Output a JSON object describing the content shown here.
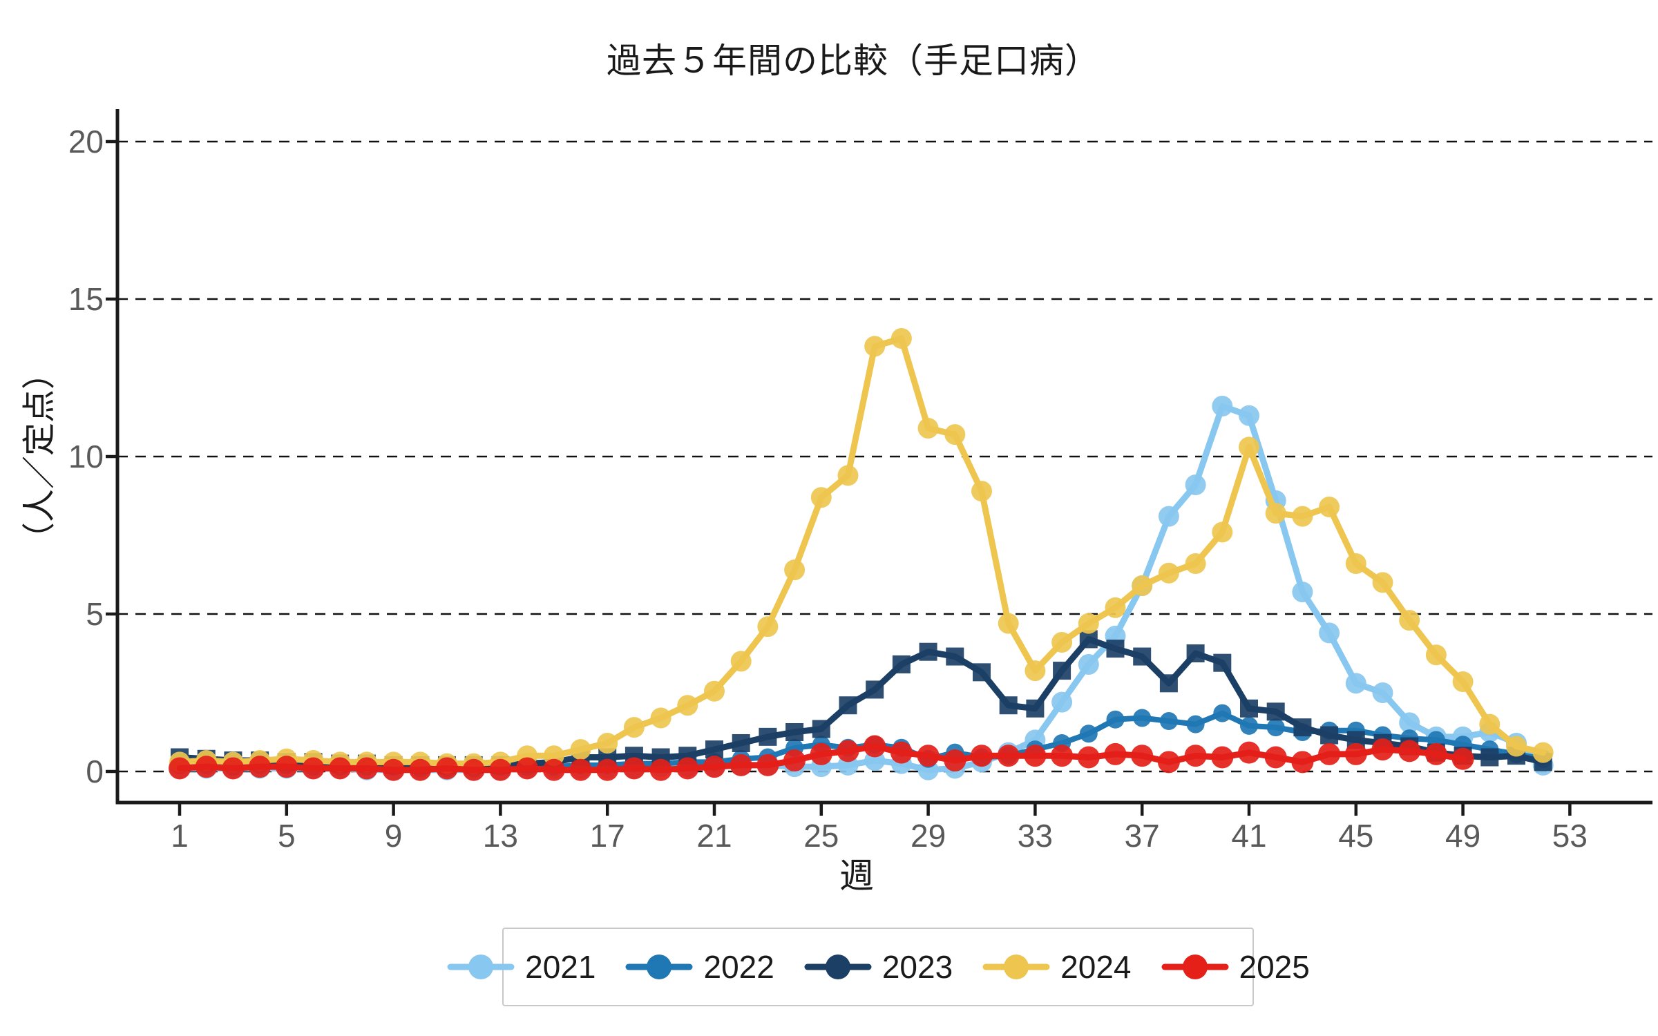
{
  "title": "過去５年間の比較（手足口病）",
  "x_axis": {
    "label": "週",
    "ticks": [
      "1",
      "5",
      "9",
      "13",
      "17",
      "21",
      "25",
      "29",
      "33",
      "37",
      "41",
      "45",
      "49",
      "53"
    ]
  },
  "y_axis": {
    "label": "（人／定点）",
    "ticks": [
      "0",
      "5",
      "10",
      "15",
      "20"
    ]
  },
  "legend": {
    "items": [
      "2021",
      "2022",
      "2023",
      "2024",
      "2025"
    ]
  },
  "style": {
    "axis_color": "#1a1a1a",
    "grid_color": "#111111",
    "tick_label_color": "#595959",
    "legend_border_color": "#c9c9c9",
    "background": "#ffffff"
  },
  "chart_data": {
    "type": "line",
    "title": "過去５年間の比較（手足口病）",
    "xlabel": "週",
    "ylabel": "（人／定点）",
    "x_ticks": [
      1,
      5,
      9,
      13,
      17,
      21,
      25,
      29,
      33,
      37,
      41,
      45,
      49,
      53
    ],
    "y_ticks": [
      0,
      5,
      10,
      15,
      20
    ],
    "xlim": [
      0,
      54
    ],
    "ylim": [
      0,
      20.5
    ],
    "grid": "horizontal-dashed",
    "legend_position": "bottom",
    "x_unit": "week",
    "series": [
      {
        "name": "2021",
        "color": "#88C7EF",
        "marker": "circle",
        "marker_r": 15,
        "line_width": 9,
        "values": [
          0.1,
          0.1,
          0.1,
          0.1,
          0.1,
          0.1,
          0.1,
          0.05,
          0.05,
          0.05,
          0.05,
          0.05,
          0.05,
          0.1,
          0.1,
          0.1,
          0.1,
          0.1,
          0.15,
          0.15,
          0.15,
          0.2,
          0.2,
          0.15,
          0.15,
          0.2,
          0.35,
          0.25,
          0.05,
          0.1,
          0.3,
          0.6,
          1.0,
          2.2,
          3.4,
          4.3,
          5.9,
          8.1,
          9.1,
          11.6,
          11.3,
          8.6,
          5.7,
          4.4,
          2.8,
          2.5,
          1.55,
          1.1,
          1.1,
          1.25,
          0.9,
          0.2
        ]
      },
      {
        "name": "2022",
        "color": "#1F77B4",
        "marker": "circle",
        "marker_r": 13,
        "line_width": 8,
        "values": [
          0.2,
          0.2,
          0.15,
          0.2,
          0.2,
          0.15,
          0.15,
          0.15,
          0.15,
          0.1,
          0.1,
          0.1,
          0.15,
          0.15,
          0.15,
          0.2,
          0.2,
          0.25,
          0.25,
          0.3,
          0.3,
          0.4,
          0.45,
          0.75,
          0.85,
          0.75,
          0.85,
          0.75,
          0.4,
          0.6,
          0.45,
          0.5,
          0.7,
          0.9,
          1.2,
          1.65,
          1.7,
          1.6,
          1.5,
          1.85,
          1.45,
          1.4,
          1.25,
          1.3,
          1.3,
          1.15,
          1.05,
          1.0,
          0.85,
          0.7,
          0.55,
          0.4
        ]
      },
      {
        "name": "2023",
        "color": "#1C3F66",
        "marker": "square",
        "marker_r": 13,
        "line_width": 9,
        "values": [
          0.45,
          0.4,
          0.35,
          0.35,
          0.3,
          0.3,
          0.25,
          0.25,
          0.2,
          0.2,
          0.2,
          0.2,
          0.2,
          0.25,
          0.3,
          0.45,
          0.45,
          0.5,
          0.45,
          0.5,
          0.7,
          0.9,
          1.1,
          1.25,
          1.35,
          2.1,
          2.6,
          3.4,
          3.8,
          3.65,
          3.15,
          2.1,
          2.0,
          3.2,
          4.2,
          3.9,
          3.65,
          2.8,
          3.75,
          3.45,
          2.0,
          1.9,
          1.4,
          1.15,
          1.0,
          0.9,
          0.8,
          0.6,
          0.5,
          0.45,
          0.5,
          0.3
        ]
      },
      {
        "name": "2024",
        "color": "#EEC54F",
        "marker": "circle",
        "marker_r": 15,
        "line_width": 9,
        "values": [
          0.3,
          0.35,
          0.3,
          0.35,
          0.4,
          0.35,
          0.3,
          0.3,
          0.3,
          0.3,
          0.25,
          0.25,
          0.3,
          0.5,
          0.5,
          0.7,
          0.9,
          1.4,
          1.7,
          2.1,
          2.55,
          3.5,
          4.6,
          6.4,
          8.7,
          9.4,
          13.5,
          13.75,
          10.9,
          10.7,
          8.9,
          4.7,
          3.2,
          4.1,
          4.7,
          5.2,
          5.9,
          6.3,
          6.6,
          7.6,
          10.3,
          8.2,
          8.1,
          8.4,
          6.6,
          6.0,
          4.8,
          3.7,
          2.85,
          1.5,
          0.8,
          0.6
        ]
      },
      {
        "name": "2025",
        "color": "#E42019",
        "marker": "circle",
        "marker_r": 16,
        "line_width": 9,
        "values": [
          0.1,
          0.15,
          0.1,
          0.15,
          0.15,
          0.1,
          0.1,
          0.1,
          0.05,
          0.05,
          0.1,
          0.05,
          0.05,
          0.1,
          0.05,
          0.05,
          0.05,
          0.1,
          0.05,
          0.1,
          0.15,
          0.2,
          0.2,
          0.35,
          0.55,
          0.65,
          0.8,
          0.6,
          0.5,
          0.35,
          0.5,
          0.5,
          0.5,
          0.5,
          0.45,
          0.55,
          0.5,
          0.3,
          0.5,
          0.45,
          0.6,
          0.45,
          0.3,
          0.55,
          0.55,
          0.7,
          0.65,
          0.55,
          0.4
        ]
      }
    ]
  }
}
